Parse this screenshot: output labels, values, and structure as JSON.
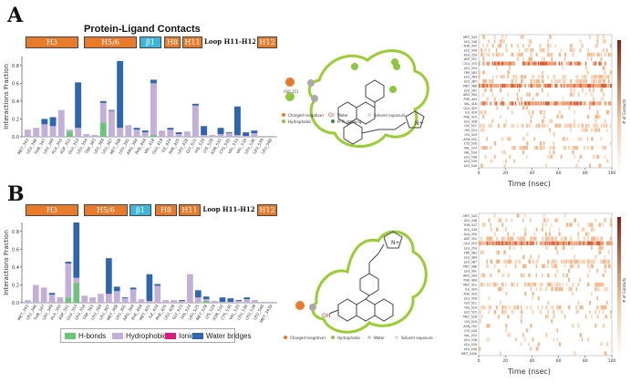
{
  "panels": {
    "A": {
      "letter": "A",
      "title": "Protein-Ligand Contacts",
      "segments": [
        "H3",
        "H5/6",
        "β1",
        "H8",
        "H11",
        "Loop H11-H12",
        "H12"
      ],
      "ylabel": "Interactions Fraction",
      "yticks": [
        "0.8",
        "0.6",
        "0.4",
        "0.2",
        "0.0"
      ],
      "timeline_xlabel": "Time (nsec)",
      "timeline_xticks": [
        "0",
        "20",
        "40",
        "60",
        "80",
        "100"
      ],
      "colorbar_label": "# of Contacts",
      "ligand_legend": [
        "Charged (negative)",
        "Hydrophobic",
        "Water",
        "Pi-Pi stacking",
        "Solvent exposure"
      ]
    },
    "B": {
      "letter": "B",
      "segments": [
        "H3",
        "H5/6",
        "β1",
        "H8",
        "H11",
        "Loop H11-H12",
        "H12"
      ],
      "ylabel": "Interactions Fraction",
      "yticks": [
        "0.8",
        "0.6",
        "0.4",
        "0.2",
        "0.0"
      ],
      "timeline_xlabel": "Time (nsec)",
      "timeline_xticks": [
        "0",
        "20",
        "40",
        "60",
        "80",
        "100"
      ],
      "colorbar_label": "# of Contacts",
      "ligand_legend": [
        "Charged (negative)",
        "Hydrophobic",
        "Water",
        "Solvent exposure"
      ]
    }
  },
  "legend": {
    "items": [
      {
        "label": "H-bonds",
        "color": "#6cc47a"
      },
      {
        "label": "Hydrophobic",
        "color": "#c3b0d8"
      },
      {
        "label": "Ionic",
        "color": "#e0187b"
      },
      {
        "label": "Water bridges",
        "color": "#2f66b0"
      }
    ]
  },
  "chart_data": [
    {
      "type": "bar",
      "title": "Protein-Ligand Contacts",
      "ylabel": "Interactions Fraction",
      "ylim": [
        0,
        0.9
      ],
      "categories": [
        "MET_343",
        "LEU_346",
        "THR_347",
        "LEU_349",
        "ALA_350",
        "ASP_351",
        "GLU_353",
        "LEU_354",
        "TRP_383",
        "LEU_384",
        "LEU_387",
        "MET_388",
        "LEU_391",
        "ARG_394",
        "PHE_404",
        "VAL_418",
        "GLU_419",
        "ILE_424",
        "PHE_425",
        "LEU_428",
        "GLY_521",
        "HIS_524",
        "LYS_529",
        "ASN_532",
        "CYS_530",
        "VAL_533",
        "VAL_534",
        "LEU_536",
        "LEU_539",
        "LEU_540"
      ],
      "series": [
        {
          "name": "H-bonds",
          "values": [
            0,
            0,
            0,
            0,
            0,
            0.06,
            0,
            0,
            0,
            0.16,
            0,
            0,
            0,
            0,
            0,
            0.02,
            0,
            0,
            0,
            0,
            0,
            0,
            0,
            0,
            0,
            0,
            0,
            0,
            0,
            0
          ]
        },
        {
          "name": "Hydrophobic",
          "values": [
            0.08,
            0.1,
            0.14,
            0.12,
            0.3,
            0.02,
            0.1,
            0.03,
            0.02,
            0.22,
            0.29,
            0.1,
            0.13,
            0.08,
            0.05,
            0.58,
            0.07,
            0.08,
            0.03,
            0.06,
            0.35,
            0.02,
            0.02,
            0.03,
            0.04,
            0.02,
            0.01,
            0.04,
            0.01,
            0.01
          ]
        },
        {
          "name": "Ionic",
          "values": [
            0,
            0,
            0,
            0,
            0,
            0,
            0,
            0,
            0,
            0,
            0,
            0,
            0,
            0,
            0,
            0,
            0,
            0,
            0,
            0,
            0,
            0,
            0,
            0,
            0,
            0,
            0,
            0,
            0,
            0
          ]
        },
        {
          "name": "Water bridges",
          "values": [
            0,
            0,
            0.06,
            0.1,
            0,
            0,
            0.51,
            0,
            0,
            0.02,
            0.01,
            0.75,
            0,
            0.02,
            0.02,
            0.04,
            0,
            0.02,
            0.02,
            0,
            0.02,
            0.1,
            0,
            0.07,
            0.01,
            0.32,
            0.04,
            0.03,
            0,
            0
          ]
        }
      ]
    },
    {
      "type": "bar",
      "ylabel": "Interactions Fraction",
      "ylim": [
        0,
        0.9
      ],
      "categories": [
        "MET_343",
        "LEU_346",
        "THR_347",
        "LEU_349",
        "ALA_350",
        "ASP_351",
        "GLU_353",
        "LEU_354",
        "TRP_383",
        "LEU_384",
        "LEU_387",
        "MET_388",
        "LEU_391",
        "ARG_394",
        "PHE_404",
        "MET_421",
        "ILE_424",
        "PHE_425",
        "LEU_428",
        "GLY_521",
        "HIS_524",
        "LEU_525",
        "MET_528",
        "LYS_529",
        "ASN_532",
        "CYS_530",
        "VAL_533",
        "LEU_536",
        "LEU_539",
        "LEU_540",
        "MET_343b"
      ],
      "series": [
        {
          "name": "H-bonds",
          "values": [
            0,
            0,
            0,
            0,
            0,
            0.06,
            0.22,
            0,
            0,
            0,
            0,
            0,
            0,
            0,
            0,
            0,
            0,
            0,
            0,
            0,
            0,
            0,
            0.02,
            0,
            0,
            0,
            0,
            0,
            0,
            0,
            0
          ]
        },
        {
          "name": "Hydrophobic",
          "values": [
            0.03,
            0.2,
            0.17,
            0.09,
            0.06,
            0.38,
            0.06,
            0.08,
            0.06,
            0.1,
            0.1,
            0.13,
            0.05,
            0.15,
            0.04,
            0.02,
            0.19,
            0.03,
            0.03,
            0.02,
            0.32,
            0.06,
            0.02,
            0.02,
            0.01,
            0.01,
            0.02,
            0.04,
            0.03,
            0.01,
            0.01
          ]
        },
        {
          "name": "Ionic",
          "values": [
            0,
            0,
            0,
            0,
            0,
            0,
            0,
            0,
            0,
            0,
            0,
            0,
            0,
            0,
            0,
            0,
            0,
            0,
            0,
            0,
            0,
            0,
            0,
            0,
            0,
            0,
            0,
            0,
            0,
            0,
            0
          ]
        },
        {
          "name": "Water bridges",
          "values": [
            0,
            0,
            0,
            0.02,
            0,
            0.02,
            0.62,
            0,
            0,
            0,
            0.4,
            0.05,
            0.01,
            0.02,
            0,
            0.3,
            0.02,
            0,
            0,
            0.01,
            0,
            0.08,
            0.03,
            0,
            0.05,
            0.04,
            0.01,
            0.02,
            0,
            0,
            0
          ]
        }
      ]
    }
  ]
}
